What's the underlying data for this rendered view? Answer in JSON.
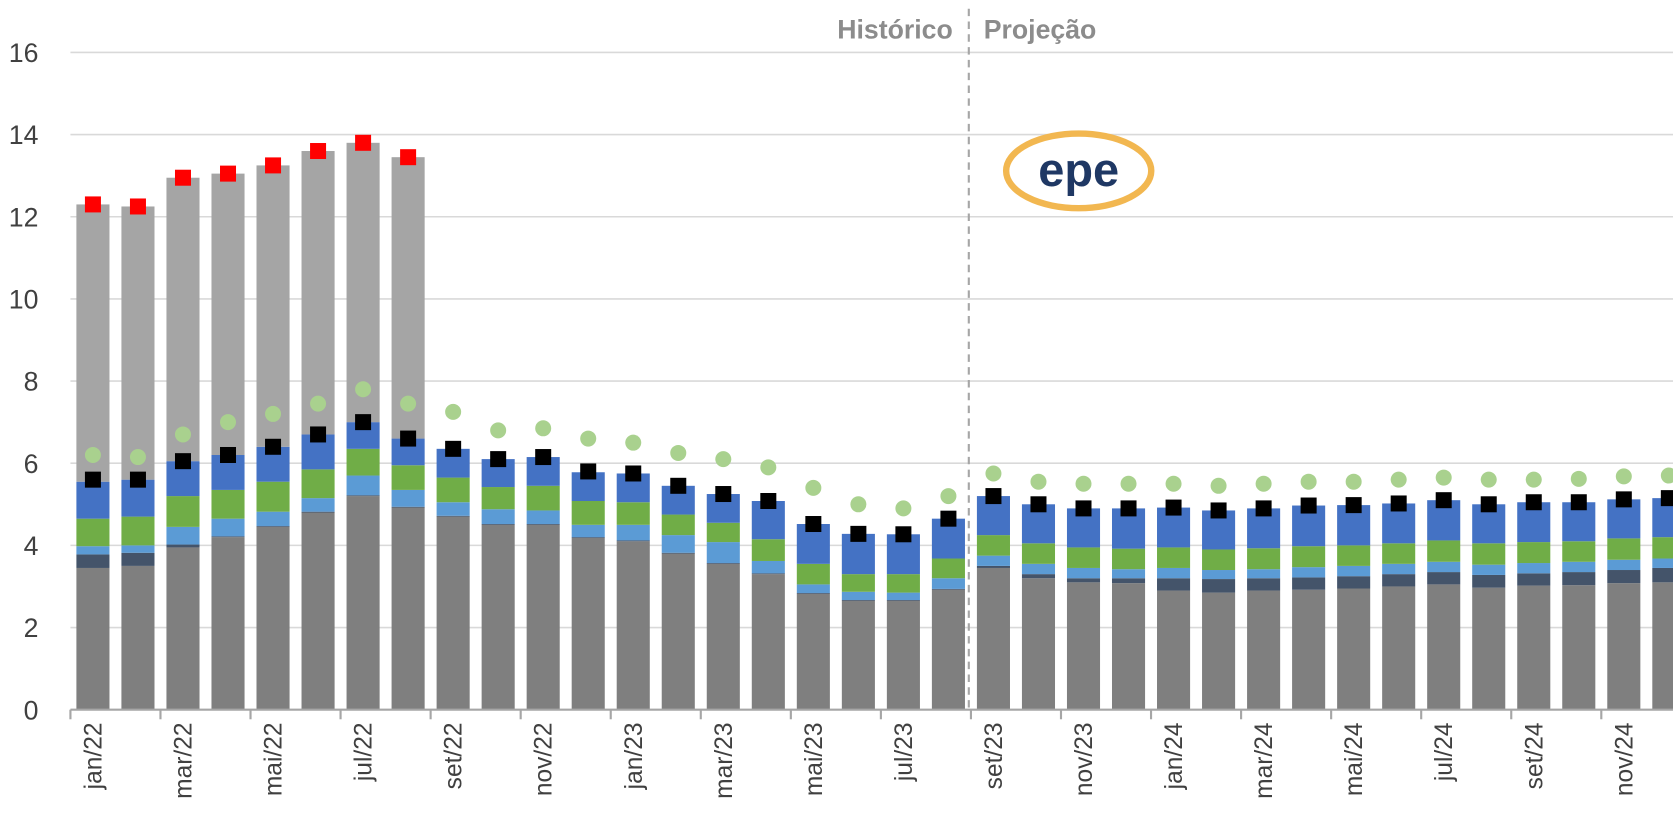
{
  "chart_data": {
    "type": "stacked-bar",
    "annotations": [
      "Histórico",
      "Projeção"
    ],
    "logo": "epe",
    "categories": [
      "jan/22",
      null,
      "mar/22",
      null,
      "mai/22",
      null,
      "jul/22",
      null,
      "set/22",
      null,
      "nov/22",
      null,
      "jan/23",
      null,
      "mar/23",
      null,
      "mai/23",
      null,
      "jul/23",
      null,
      "set/23",
      null,
      "nov/23",
      null,
      "jan/24",
      null,
      "mar/24",
      null,
      "mai/24",
      null,
      "jul/24",
      null,
      "set/24",
      null,
      "nov/24",
      null
    ],
    "ylim": [
      0,
      16
    ],
    "yticks": [
      0,
      2,
      4,
      6,
      8,
      10,
      12,
      14,
      16
    ],
    "grid": true,
    "series": [
      {
        "color": "#7f7f7f",
        "values": [
          3.45,
          3.5,
          3.95,
          4.2,
          4.45,
          4.8,
          5.2,
          4.92,
          4.7,
          4.5,
          4.5,
          4.18,
          4.1,
          3.8,
          3.55,
          3.3,
          2.82,
          2.65,
          2.65,
          2.92,
          3.45,
          3.2,
          3.1,
          3.08,
          2.9,
          2.85,
          2.9,
          2.92,
          2.95,
          3.0,
          3.05,
          2.97,
          3.02,
          3.03,
          3.08,
          3.1
        ]
      },
      {
        "color": "#44546a",
        "values": [
          0.33,
          0.32,
          0.07,
          0.02,
          0.02,
          0.02,
          0.02,
          0.02,
          0.02,
          0.02,
          0.02,
          0.02,
          0.02,
          0.02,
          0.02,
          0.02,
          0.02,
          0.02,
          0.02,
          0.02,
          0.05,
          0.1,
          0.1,
          0.12,
          0.3,
          0.33,
          0.3,
          0.3,
          0.3,
          0.3,
          0.3,
          0.31,
          0.3,
          0.32,
          0.32,
          0.35
        ]
      },
      {
        "color": "#5b9bd5",
        "values": [
          0.2,
          0.18,
          0.43,
          0.43,
          0.35,
          0.33,
          0.48,
          0.41,
          0.33,
          0.36,
          0.33,
          0.3,
          0.38,
          0.43,
          0.51,
          0.3,
          0.21,
          0.2,
          0.18,
          0.26,
          0.25,
          0.25,
          0.25,
          0.22,
          0.25,
          0.22,
          0.22,
          0.25,
          0.25,
          0.25,
          0.25,
          0.25,
          0.25,
          0.25,
          0.25,
          0.23
        ]
      },
      {
        "color": "#70ad47",
        "values": [
          0.67,
          0.7,
          0.75,
          0.7,
          0.73,
          0.7,
          0.65,
          0.6,
          0.6,
          0.54,
          0.6,
          0.58,
          0.55,
          0.5,
          0.47,
          0.53,
          0.5,
          0.43,
          0.45,
          0.48,
          0.5,
          0.5,
          0.5,
          0.5,
          0.5,
          0.5,
          0.51,
          0.51,
          0.5,
          0.5,
          0.52,
          0.52,
          0.51,
          0.5,
          0.52,
          0.52
        ]
      },
      {
        "color": "#4472c4",
        "values": [
          0.9,
          0.9,
          0.85,
          0.85,
          0.85,
          0.85,
          0.65,
          0.65,
          0.7,
          0.68,
          0.7,
          0.7,
          0.7,
          0.7,
          0.7,
          0.93,
          0.97,
          0.98,
          0.97,
          0.97,
          0.95,
          0.95,
          0.95,
          0.98,
          0.97,
          0.95,
          0.97,
          0.99,
          0.98,
          0.97,
          0.98,
          0.95,
          0.97,
          0.95,
          0.95,
          0.95
        ]
      },
      {
        "color": "#a5a5a5",
        "values": [
          6.75,
          6.65,
          6.9,
          6.85,
          6.85,
          6.9,
          6.8,
          6.85,
          null,
          null,
          null,
          null,
          null,
          null,
          null,
          null,
          null,
          null,
          null,
          null,
          null,
          null,
          null,
          null,
          null,
          null,
          null,
          null,
          null,
          null,
          null,
          null,
          null,
          null,
          null,
          null
        ]
      }
    ],
    "markers": [
      {
        "color": "#a9d18e",
        "shape": "circle",
        "values": [
          6.2,
          6.15,
          6.7,
          7.0,
          7.2,
          7.45,
          7.8,
          7.45,
          7.25,
          6.8,
          6.85,
          6.6,
          6.5,
          6.25,
          6.1,
          5.9,
          5.4,
          5.0,
          4.9,
          5.2,
          5.75,
          5.55,
          5.5,
          5.5,
          5.5,
          5.45,
          5.5,
          5.55,
          5.55,
          5.6,
          5.65,
          5.6,
          5.6,
          5.62,
          5.68,
          5.7
        ]
      },
      {
        "color": "#000000",
        "shape": "square",
        "values": [
          5.6,
          5.6,
          6.05,
          6.2,
          6.4,
          6.7,
          7.0,
          6.6,
          6.35,
          6.1,
          6.15,
          5.8,
          5.75,
          5.45,
          5.25,
          5.08,
          4.52,
          4.28,
          4.27,
          4.65,
          5.2,
          5.0,
          4.9,
          4.9,
          4.92,
          4.85,
          4.9,
          4.97,
          4.98,
          5.02,
          5.1,
          5.0,
          5.05,
          5.05,
          5.12,
          5.15
        ]
      },
      {
        "color": "#ff0000",
        "shape": "square",
        "values": [
          12.3,
          12.25,
          12.95,
          13.05,
          13.25,
          13.6,
          13.8,
          13.45,
          null,
          null,
          null,
          null,
          null,
          null,
          null,
          null,
          null,
          null,
          null,
          null,
          null,
          null,
          null,
          null,
          null,
          null,
          null,
          null,
          null,
          null,
          null,
          null,
          null,
          null,
          null,
          null
        ]
      }
    ]
  }
}
